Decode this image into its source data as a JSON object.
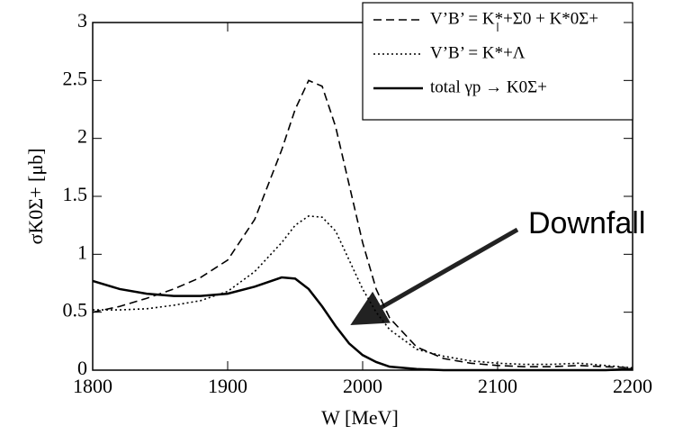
{
  "chart_data": {
    "type": "line",
    "x_label": "W [MeV]",
    "y_label": "σK0Σ+ [μb]",
    "annotation": "Downfall",
    "x": [
      1800,
      1820,
      1840,
      1860,
      1880,
      1900,
      1920,
      1940,
      1950,
      1960,
      1970,
      1980,
      1990,
      2000,
      2010,
      2020,
      2040,
      2060,
      2080,
      2100,
      2120,
      2140,
      2160,
      2180,
      2200
    ],
    "series": [
      {
        "name": "V’B’ = K*+Σ0 + K*0Σ+",
        "color": "#000000",
        "dash": "9,5",
        "values": [
          0.5,
          0.55,
          0.62,
          0.7,
          0.8,
          0.95,
          1.3,
          1.9,
          2.25,
          2.5,
          2.45,
          2.1,
          1.6,
          1.1,
          0.7,
          0.45,
          0.2,
          0.1,
          0.06,
          0.04,
          0.03,
          0.03,
          0.04,
          0.03,
          0.02
        ]
      },
      {
        "name": "V’B’ = K*+Λ",
        "color": "#000000",
        "dash": "2,3",
        "values": [
          0.52,
          0.52,
          0.53,
          0.56,
          0.6,
          0.68,
          0.85,
          1.1,
          1.25,
          1.33,
          1.32,
          1.2,
          0.95,
          0.7,
          0.5,
          0.35,
          0.18,
          0.12,
          0.08,
          0.06,
          0.05,
          0.05,
          0.06,
          0.04,
          0.02
        ]
      },
      {
        "name": "total γp → K0Σ+",
        "color": "#000000",
        "dash": "none",
        "values": [
          0.77,
          0.7,
          0.66,
          0.64,
          0.64,
          0.66,
          0.72,
          0.8,
          0.79,
          0.7,
          0.55,
          0.38,
          0.23,
          0.13,
          0.07,
          0.03,
          0.01,
          0,
          0,
          0,
          0,
          0,
          0,
          0,
          0.01
        ]
      }
    ],
    "xlim": [
      1800,
      2200
    ],
    "xticks": [
      1800,
      1900,
      2000,
      2100,
      2200
    ],
    "ylim": [
      0,
      3
    ],
    "yticks": [
      0,
      0.5,
      1,
      1.5,
      2,
      2.5,
      3
    ],
    "legend": "upper right"
  }
}
